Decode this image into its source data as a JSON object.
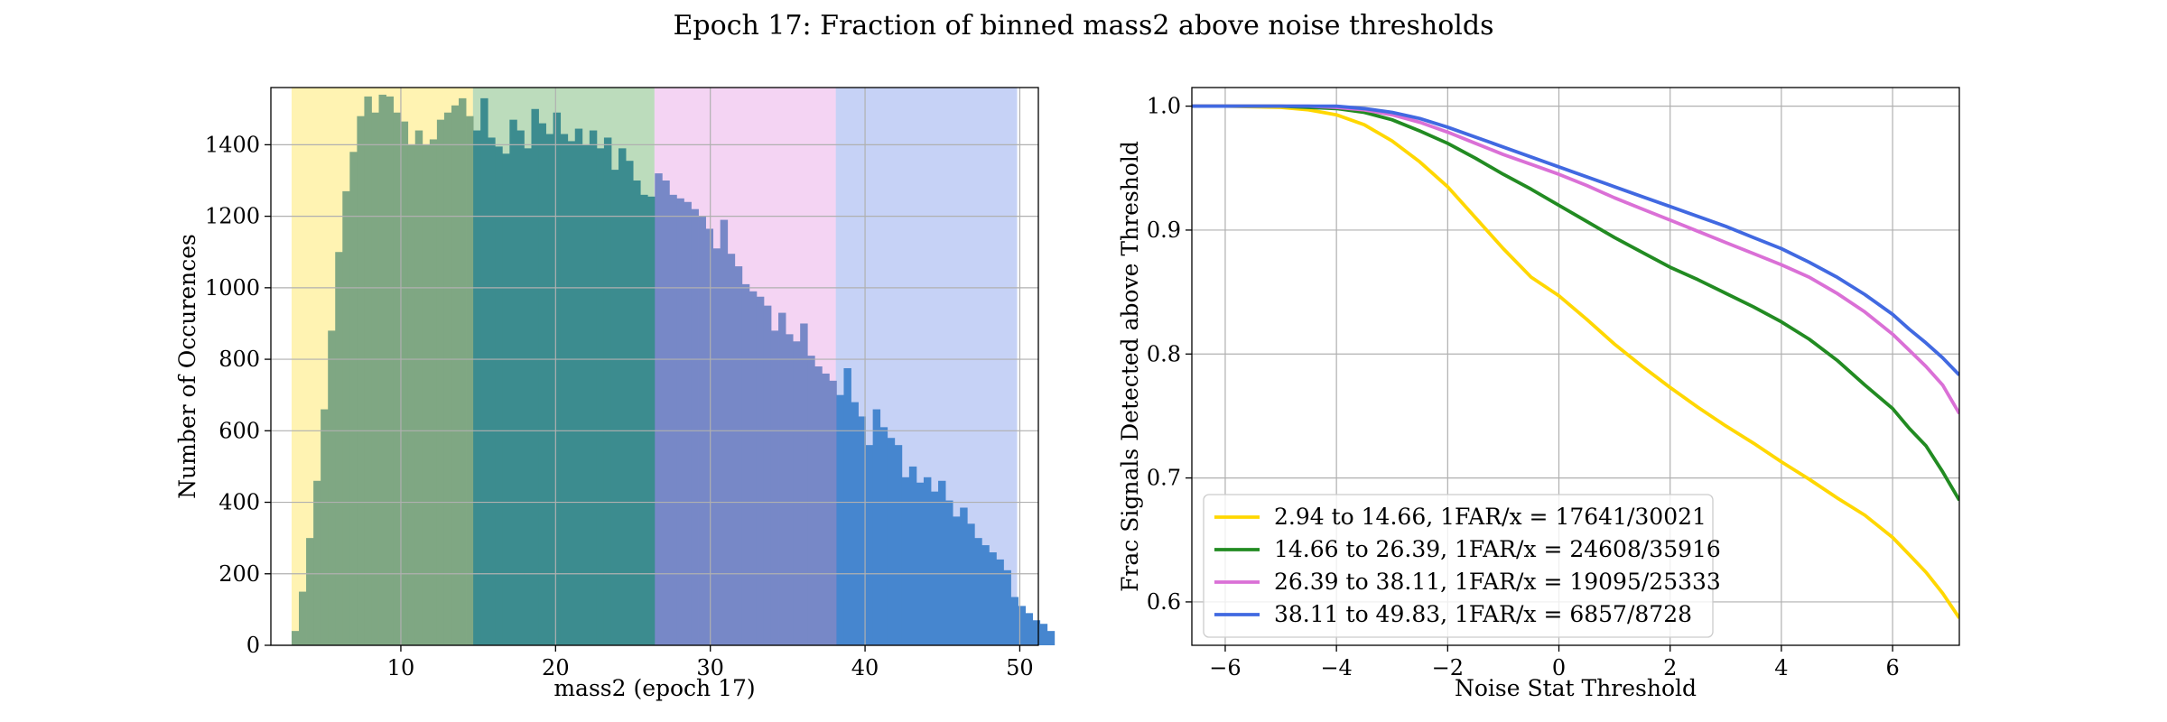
{
  "figure": {
    "title": "Epoch 17: Fraction of binned mass2 above noise thresholds"
  },
  "chart_data": [
    {
      "type": "bar",
      "subtype": "histogram",
      "xlabel": "mass2 (epoch 17)",
      "ylabel": "Number of Occurences",
      "xlim": [
        1.6,
        51.2
      ],
      "ylim": [
        0,
        1560
      ],
      "xticks": [
        10,
        20,
        30,
        40,
        50
      ],
      "yticks": [
        0,
        200,
        400,
        600,
        800,
        1000,
        1200,
        1400
      ],
      "grid": true,
      "bin_start": 2.94,
      "bin_width": 0.4695,
      "counts": [
        40,
        150,
        300,
        460,
        660,
        880,
        1100,
        1270,
        1380,
        1480,
        1535,
        1490,
        1540,
        1535,
        1490,
        1465,
        1400,
        1440,
        1400,
        1415,
        1470,
        1490,
        1510,
        1530,
        1480,
        1440,
        1530,
        1420,
        1395,
        1375,
        1470,
        1440,
        1390,
        1500,
        1460,
        1430,
        1490,
        1430,
        1410,
        1445,
        1400,
        1440,
        1390,
        1420,
        1330,
        1390,
        1355,
        1300,
        1260,
        1255,
        1320,
        1300,
        1260,
        1250,
        1240,
        1220,
        1200,
        1165,
        1110,
        1190,
        1095,
        1060,
        1010,
        990,
        975,
        950,
        880,
        930,
        870,
        850,
        900,
        810,
        780,
        760,
        740,
        700,
        775,
        680,
        640,
        560,
        660,
        610,
        580,
        560,
        470,
        500,
        455,
        470,
        430,
        460,
        405,
        360,
        385,
        340,
        300,
        280,
        260,
        240,
        210,
        135,
        110,
        90,
        70,
        60,
        40
      ],
      "bands": [
        {
          "from": 2.94,
          "to": 14.66,
          "color": "#FFD700",
          "bar_color": "#7fa783"
        },
        {
          "from": 14.66,
          "to": 26.39,
          "color": "#228B22",
          "bar_color": "#3c8c8f"
        },
        {
          "from": 26.39,
          "to": 38.11,
          "color": "#DA70D6",
          "bar_color": "#7788c7"
        },
        {
          "from": 38.11,
          "to": 49.83,
          "color": "#4169E1",
          "bar_color": "#4686cf"
        }
      ]
    },
    {
      "type": "line",
      "xlabel": "Noise Stat Threshold",
      "ylabel": "Frac Signals Detected above Threshold",
      "xlim": [
        -6.6,
        7.2
      ],
      "ylim": [
        0.565,
        1.015
      ],
      "xticks": [
        -6,
        -4,
        -2,
        0,
        2,
        4,
        6
      ],
      "yticks": [
        0.6,
        0.7,
        0.8,
        0.9,
        1.0
      ],
      "grid": true,
      "legend_position": "lower-left",
      "x": [
        -6.6,
        -6,
        -5,
        -4.5,
        -4,
        -3.5,
        -3,
        -2.5,
        -2,
        -1.5,
        -1,
        -0.5,
        0,
        0.5,
        1,
        1.5,
        2,
        2.5,
        3,
        3.5,
        4,
        4.5,
        5,
        5.5,
        6,
        6.3,
        6.6,
        6.9,
        7.2
      ],
      "series": [
        {
          "name": "2.94 to 14.66, 1FAR/x = 17641/30021",
          "color": "#FFD700",
          "values": [
            1.0,
            1.0,
            0.999,
            0.997,
            0.993,
            0.985,
            0.972,
            0.955,
            0.935,
            0.91,
            0.885,
            0.862,
            0.847,
            0.828,
            0.808,
            0.79,
            0.773,
            0.757,
            0.742,
            0.728,
            0.713,
            0.699,
            0.684,
            0.67,
            0.652,
            0.638,
            0.624,
            0.607,
            0.587
          ]
        },
        {
          "name": "14.66 to 26.39, 1FAR/x = 24608/35916",
          "color": "#228B22",
          "values": [
            1.0,
            1.0,
            1.0,
            0.999,
            0.998,
            0.995,
            0.989,
            0.98,
            0.97,
            0.958,
            0.945,
            0.933,
            0.92,
            0.907,
            0.894,
            0.882,
            0.87,
            0.86,
            0.849,
            0.838,
            0.826,
            0.812,
            0.795,
            0.775,
            0.756,
            0.74,
            0.726,
            0.705,
            0.682
          ]
        },
        {
          "name": "26.39 to 38.11, 1FAR/x = 19095/25333",
          "color": "#DA70D6",
          "values": [
            1.0,
            1.0,
            1.0,
            1.0,
            0.999,
            0.997,
            0.993,
            0.987,
            0.979,
            0.97,
            0.961,
            0.953,
            0.945,
            0.936,
            0.926,
            0.917,
            0.908,
            0.899,
            0.89,
            0.881,
            0.872,
            0.862,
            0.849,
            0.834,
            0.816,
            0.803,
            0.79,
            0.775,
            0.752
          ]
        },
        {
          "name": "38.11 to 49.83, 1FAR/x = 6857/8728",
          "color": "#4169E1",
          "values": [
            1.0,
            1.0,
            1.0,
            1.0,
            1.0,
            0.998,
            0.995,
            0.99,
            0.983,
            0.975,
            0.967,
            0.959,
            0.951,
            0.943,
            0.935,
            0.927,
            0.919,
            0.911,
            0.903,
            0.894,
            0.885,
            0.874,
            0.862,
            0.848,
            0.832,
            0.82,
            0.809,
            0.797,
            0.783
          ]
        }
      ]
    }
  ]
}
